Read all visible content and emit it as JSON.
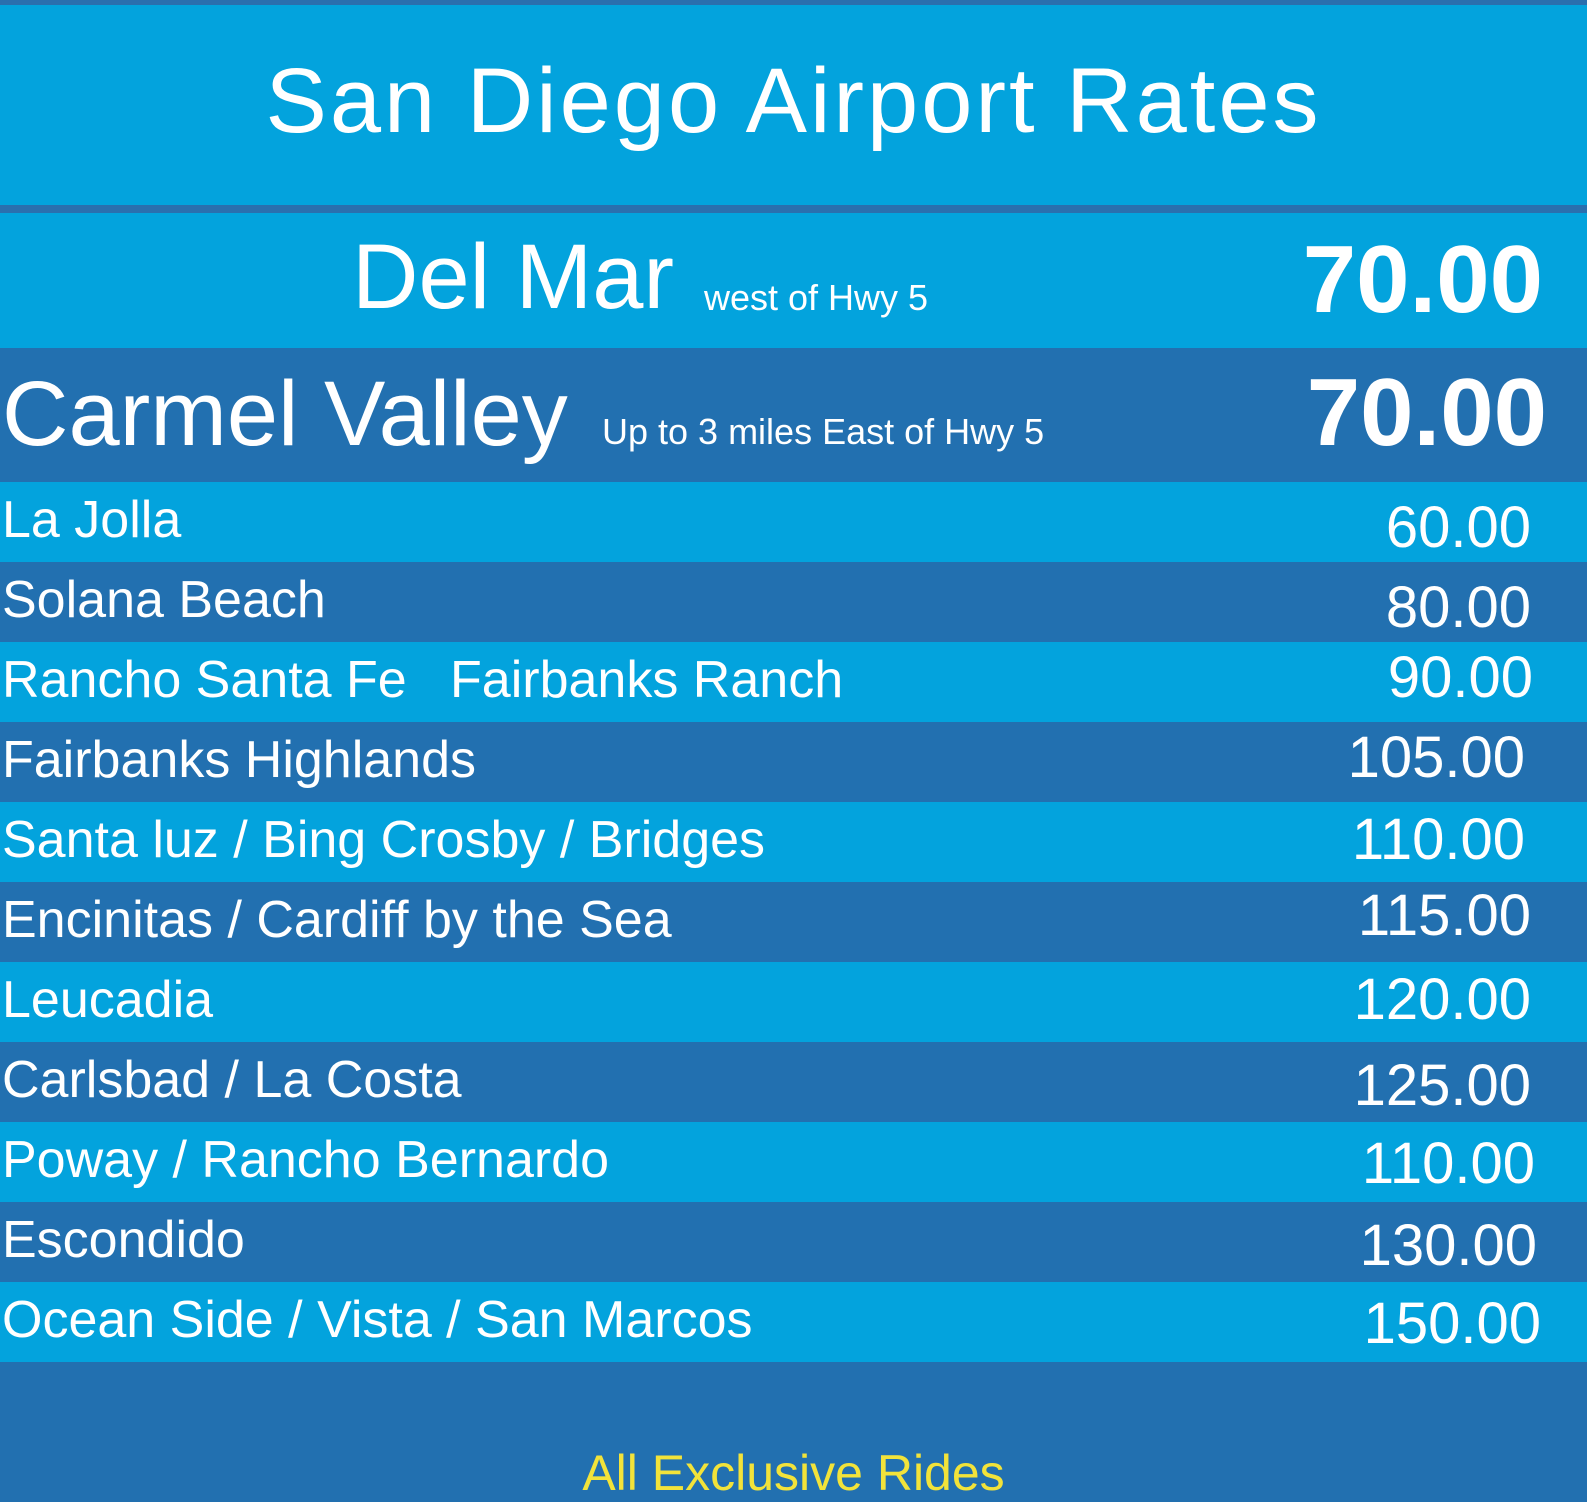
{
  "title": "San Diego Airport Rates",
  "featured": [
    {
      "name": "Del Mar",
      "note": "west of Hwy 5",
      "price": "70.00"
    },
    {
      "name": "Carmel Valley",
      "note": "Up to 3 miles East of Hwy 5",
      "price": "70.00"
    }
  ],
  "rates": [
    {
      "name": "La Jolla",
      "price": "60.00"
    },
    {
      "name": "Solana Beach",
      "price": "80.00"
    },
    {
      "name": "Rancho Santa Fe   Fairbanks Ranch",
      "price": "90.00"
    },
    {
      "name": "Fairbanks Highlands",
      "price": "105.00"
    },
    {
      "name": "Santa luz / Bing Crosby / Bridges",
      "price": "110.00"
    },
    {
      "name": "Encinitas / Cardiff by the Sea",
      "price": "115.00"
    },
    {
      "name": "Leucadia",
      "price": "120.00"
    },
    {
      "name": "Carlsbad / La Costa",
      "price": "125.00"
    },
    {
      "name": "Poway / Rancho Bernardo",
      "price": "110.00"
    },
    {
      "name": "Escondido",
      "price": "130.00"
    },
    {
      "name": "Ocean Side / Vista / San Marcos",
      "price": "150.00"
    }
  ],
  "footer": "All Exclusive Rides",
  "colors": {
    "light_row": "#03a3dd",
    "dark_row": "#2270b0",
    "footer_text": "#f2e33a"
  }
}
